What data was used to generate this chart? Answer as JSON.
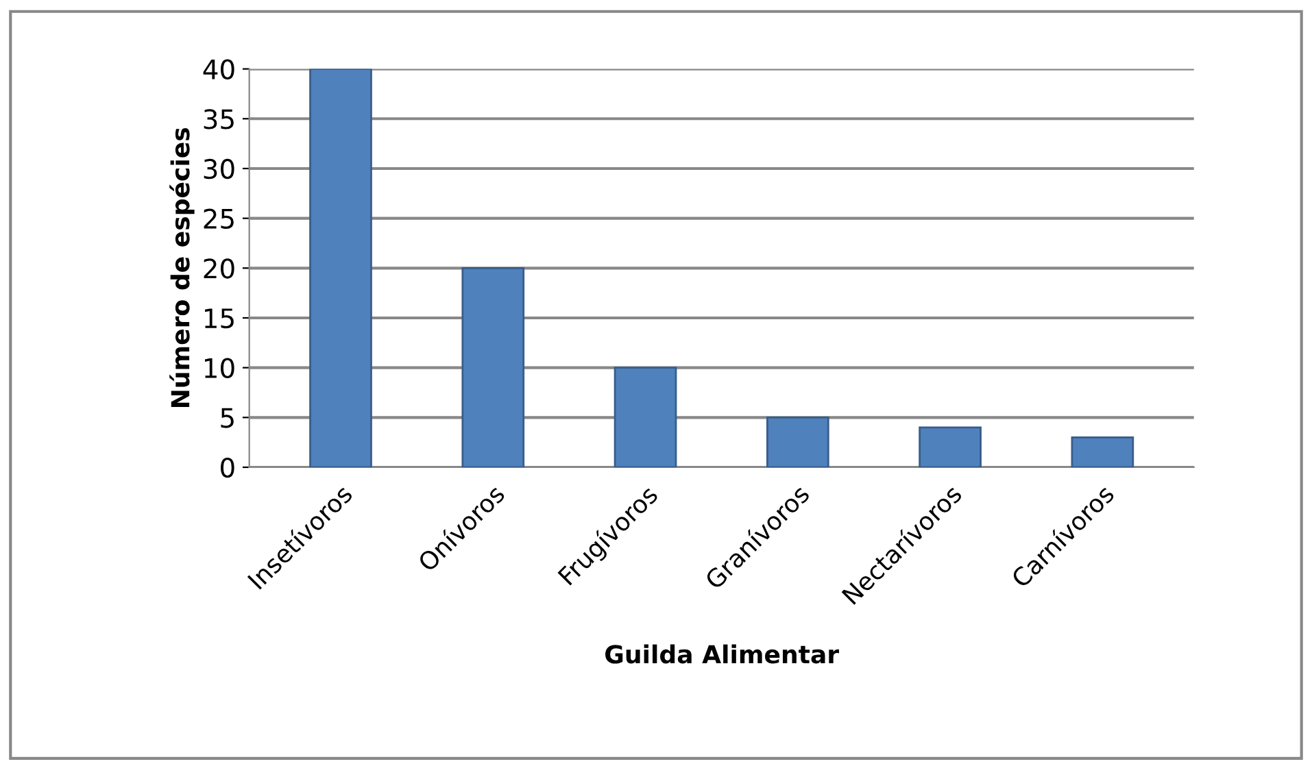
{
  "chart_data": {
    "type": "bar",
    "xlabel": "Guilda Alimentar",
    "ylabel": "Número de espécies",
    "categories": [
      "Insetívoros",
      "Onívoros",
      "Frugívoros",
      "Granívoros",
      "Nectarívoros",
      "Carnívoros"
    ],
    "values": [
      40,
      20,
      10,
      5,
      4,
      3
    ],
    "color": "#4f81bd",
    "ylim": [
      0,
      40
    ],
    "yticks": [
      0,
      5,
      10,
      15,
      20,
      25,
      30,
      35,
      40
    ],
    "grid": "y",
    "legend": false
  }
}
